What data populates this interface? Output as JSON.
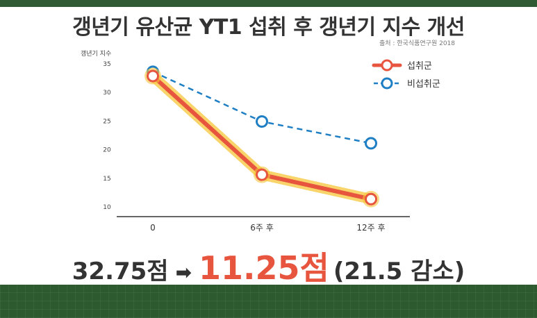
{
  "title": "갱년기 유산균 YT1 섭취 후 갱년기 지수 개선",
  "source": "출처 : 한국식품연구원 2018",
  "chart_data": {
    "type": "line",
    "title": "갱년기 유산균 YT1 섭취 후 갱년기 지수 개선",
    "ylabel": "갱년기 지수",
    "xlabel": "",
    "categories": [
      "0",
      "6주 후",
      "12주 후"
    ],
    "y_ticks": [
      35,
      30,
      25,
      20,
      15,
      10
    ],
    "ylim": [
      10,
      35
    ],
    "grid": false,
    "legend_position": "top-right",
    "series": [
      {
        "name": "섭취군",
        "values": [
          32.75,
          15.5,
          11.25
        ],
        "color": "#e8553e",
        "style": "solid"
      },
      {
        "name": "비섭취군",
        "values": [
          33.5,
          24.8,
          21.0
        ],
        "color": "#1f7fc4",
        "style": "dashed"
      }
    ]
  },
  "result": {
    "from": "32.75점",
    "arrow": "➡",
    "to": "11.25점",
    "diff": "(21.5 감소)"
  },
  "colors": {
    "band": "#2d5a2f",
    "glow": "#f5c53a",
    "title": "#333333"
  }
}
